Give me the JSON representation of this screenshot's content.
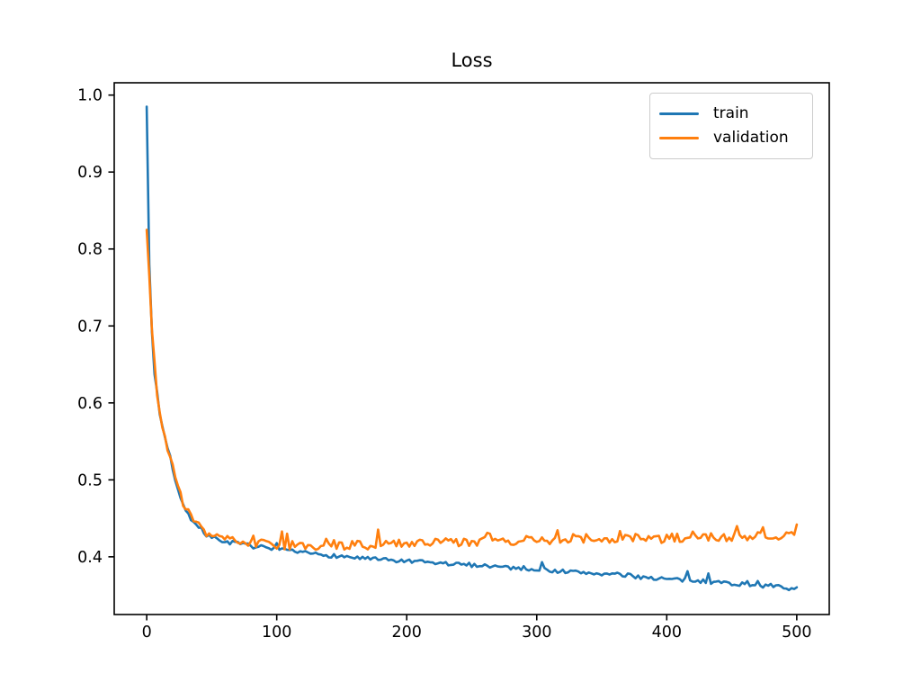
{
  "chart_data": {
    "type": "line",
    "title": "Loss",
    "xlabel": "",
    "ylabel": "",
    "xlim": [
      -25,
      525
    ],
    "ylim": [
      0.325,
      1.016
    ],
    "xticks": [
      0,
      100,
      200,
      300,
      400,
      500
    ],
    "xtick_labels": [
      "0",
      "100",
      "200",
      "300",
      "400",
      "500"
    ],
    "yticks": [
      0.4,
      0.5,
      0.6,
      0.7,
      0.8,
      0.9,
      1.0
    ],
    "ytick_labels": [
      "0.4",
      "0.5",
      "0.6",
      "0.7",
      "0.8",
      "0.9",
      "1.0"
    ],
    "grid": false,
    "legend": {
      "position": "upper right",
      "entries": [
        "train",
        "validation"
      ]
    },
    "series": [
      {
        "name": "train",
        "color": "#1f77b4",
        "x": [
          0,
          1,
          2,
          3,
          5,
          7,
          10,
          14,
          18,
          22,
          26,
          30,
          35,
          40,
          45,
          50,
          60,
          70,
          80,
          90,
          100,
          120,
          140,
          160,
          180,
          200,
          220,
          240,
          260,
          280,
          300,
          320,
          340,
          360,
          380,
          400,
          420,
          440,
          460,
          480,
          500
        ],
        "y": [
          0.985,
          0.86,
          0.78,
          0.73,
          0.655,
          0.625,
          0.585,
          0.555,
          0.53,
          0.5,
          0.478,
          0.462,
          0.447,
          0.437,
          0.43,
          0.425,
          0.42,
          0.417,
          0.414,
          0.412,
          0.409,
          0.405,
          0.402,
          0.399,
          0.396,
          0.394,
          0.392,
          0.39,
          0.389,
          0.386,
          0.384,
          0.381,
          0.379,
          0.377,
          0.374,
          0.371,
          0.369,
          0.367,
          0.364,
          0.362,
          0.358
        ],
        "noise": {
          "amp": 0.0028,
          "spike_prob": 0.055,
          "spike_amp": 0.013,
          "seed": 7
        }
      },
      {
        "name": "validation",
        "color": "#ff7f0e",
        "x": [
          0,
          1,
          2,
          3,
          5,
          7,
          10,
          14,
          18,
          22,
          26,
          30,
          35,
          40,
          45,
          50,
          60,
          70,
          80,
          90,
          100,
          120,
          140,
          160,
          180,
          200,
          220,
          240,
          260,
          280,
          300,
          320,
          340,
          360,
          380,
          400,
          420,
          440,
          460,
          480,
          500
        ],
        "y": [
          0.825,
          0.795,
          0.765,
          0.73,
          0.66,
          0.628,
          0.588,
          0.556,
          0.53,
          0.501,
          0.48,
          0.464,
          0.45,
          0.44,
          0.433,
          0.428,
          0.423,
          0.42,
          0.418,
          0.416,
          0.415,
          0.414,
          0.414,
          0.415,
          0.416,
          0.417,
          0.418,
          0.419,
          0.42,
          0.421,
          0.422,
          0.422,
          0.423,
          0.424,
          0.424,
          0.424,
          0.425,
          0.425,
          0.426,
          0.426,
          0.427
        ],
        "noise": {
          "amp": 0.006,
          "spike_prob": 0.11,
          "spike_amp": 0.016,
          "seed": 3
        }
      }
    ]
  }
}
